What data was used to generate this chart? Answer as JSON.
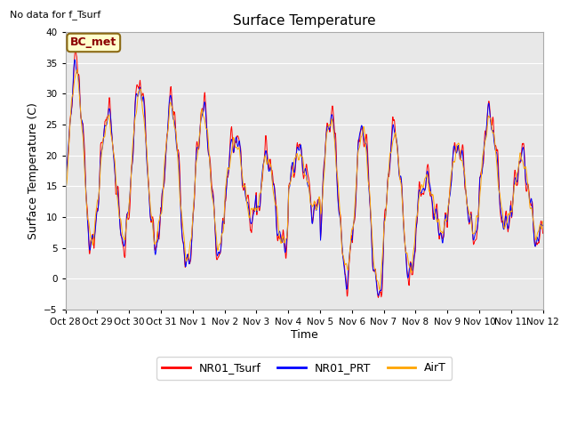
{
  "title": "Surface Temperature",
  "ylabel": "Surface Temperature (C)",
  "xlabel": "Time",
  "top_label": "No data for f_Tsurf",
  "box_label": "BC_met",
  "ylim": [
    -5,
    40
  ],
  "yticks": [
    -5,
    0,
    5,
    10,
    15,
    20,
    25,
    30,
    35,
    40
  ],
  "xtick_labels": [
    "Oct 28",
    "Oct 29",
    "Oct 30",
    "Oct 31",
    "Nov 1",
    "Nov 2",
    "Nov 3",
    "Nov 4",
    "Nov 5",
    "Nov 6",
    "Nov 7",
    "Nov 8",
    "Nov 9",
    "Nov 10",
    "Nov 11",
    "Nov 12"
  ],
  "legend_labels": [
    "NR01_Tsurf",
    "NR01_PRT",
    "AirT"
  ],
  "line_colors": [
    "red",
    "blue",
    "orange"
  ],
  "plot_bg_color": "#e8e8e8",
  "box_fill": "#ffffcc",
  "box_text_color": "#8b0000",
  "box_border_color": "#8b6914",
  "grid_color": "white",
  "n_days": 15,
  "n_pts": 1440
}
